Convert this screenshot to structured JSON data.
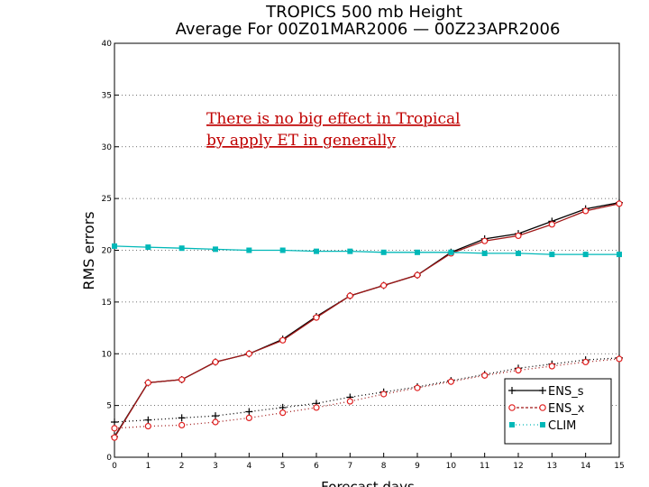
{
  "chart_data": {
    "type": "line",
    "title": "TROPICS 500 mb Height",
    "subtitle": "Average For 00Z01MAR2006 — 00Z23APR2006",
    "xlabel": "Forecast days",
    "ylabel": "RMS errors",
    "xlim": [
      0,
      15
    ],
    "ylim": [
      0,
      40
    ],
    "x": [
      0,
      1,
      2,
      3,
      4,
      5,
      6,
      7,
      8,
      9,
      10,
      11,
      12,
      13,
      14,
      15
    ],
    "x_ticks": [
      "0",
      "1",
      "2",
      "3",
      "4",
      "5",
      "6",
      "7",
      "8",
      "9",
      "10",
      "11",
      "12",
      "13",
      "14",
      "15"
    ],
    "y_ticks": [
      "0",
      "5",
      "10",
      "15",
      "20",
      "25",
      "30",
      "35",
      "40"
    ],
    "grid": true,
    "legend_position": "bottom-right",
    "annotation": [
      "There is no big effect in Tropical",
      "by apply ET in generally"
    ],
    "colors": {
      "ens_s": "#000000",
      "ens_x": "#a01818",
      "ens_x_marker": "#e02020",
      "clim": "#00b8b8",
      "annotation": "#c00000"
    },
    "series": [
      {
        "name": "ENS_s",
        "group": "mean",
        "values": [
          2.0,
          7.2,
          7.5,
          9.2,
          10.0,
          11.4,
          13.6,
          15.6,
          16.6,
          17.6,
          19.8,
          21.1,
          21.6,
          22.8,
          24.0,
          24.6
        ]
      },
      {
        "name": "ENS_x",
        "group": "mean",
        "values": [
          1.9,
          7.2,
          7.5,
          9.2,
          10.0,
          11.3,
          13.5,
          15.6,
          16.6,
          17.6,
          19.7,
          20.9,
          21.4,
          22.5,
          23.8,
          24.5
        ]
      },
      {
        "name": "ENS_s",
        "group": "spread",
        "values": [
          3.4,
          3.6,
          3.8,
          4.0,
          4.4,
          4.8,
          5.2,
          5.8,
          6.3,
          6.8,
          7.4,
          8.0,
          8.6,
          9.0,
          9.4,
          9.6
        ]
      },
      {
        "name": "ENS_x",
        "group": "spread",
        "values": [
          2.8,
          3.0,
          3.1,
          3.4,
          3.8,
          4.3,
          4.8,
          5.4,
          6.1,
          6.7,
          7.3,
          7.9,
          8.4,
          8.8,
          9.2,
          9.5
        ]
      },
      {
        "name": "CLIM",
        "group": "clim",
        "values": [
          20.4,
          20.3,
          20.2,
          20.1,
          20.0,
          20.0,
          19.9,
          19.9,
          19.8,
          19.8,
          19.8,
          19.7,
          19.7,
          19.6,
          19.6,
          19.6
        ]
      }
    ]
  }
}
